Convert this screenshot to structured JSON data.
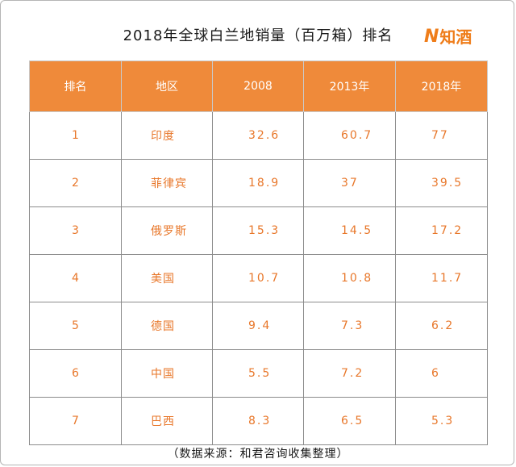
{
  "title": "2018年全球白兰地销量（百万箱）排名",
  "logo": {
    "mark": "N",
    "text": "知酒",
    "color": "#ef7d1a"
  },
  "colors": {
    "header_bg": "#ef8a3a",
    "cell_text": "#e8772a"
  },
  "table": {
    "headers": [
      "排名",
      "地区",
      "2008",
      "2013年",
      "2018年"
    ],
    "rows": [
      {
        "rank": "1",
        "region": "印度",
        "y2008": "32.6",
        "y2013": "60.7",
        "y2018": "77"
      },
      {
        "rank": "2",
        "region": "菲律宾",
        "y2008": "18.9",
        "y2013": "37",
        "y2018": "39.5"
      },
      {
        "rank": "3",
        "region": "俄罗斯",
        "y2008": "15.3",
        "y2013": "14.5",
        "y2018": "17.2"
      },
      {
        "rank": "4",
        "region": "美国",
        "y2008": "10.7",
        "y2013": "10.8",
        "y2018": "11.7"
      },
      {
        "rank": "5",
        "region": "德国",
        "y2008": "9.4",
        "y2013": "7.3",
        "y2018": "6.2"
      },
      {
        "rank": "6",
        "region": "中国",
        "y2008": "5.5",
        "y2013": "7.2",
        "y2018": "6"
      },
      {
        "rank": "7",
        "region": "巴西",
        "y2008": "8.3",
        "y2013": "6.5",
        "y2018": "5.3"
      }
    ]
  },
  "source": "（数据来源：和君咨询收集整理）"
}
